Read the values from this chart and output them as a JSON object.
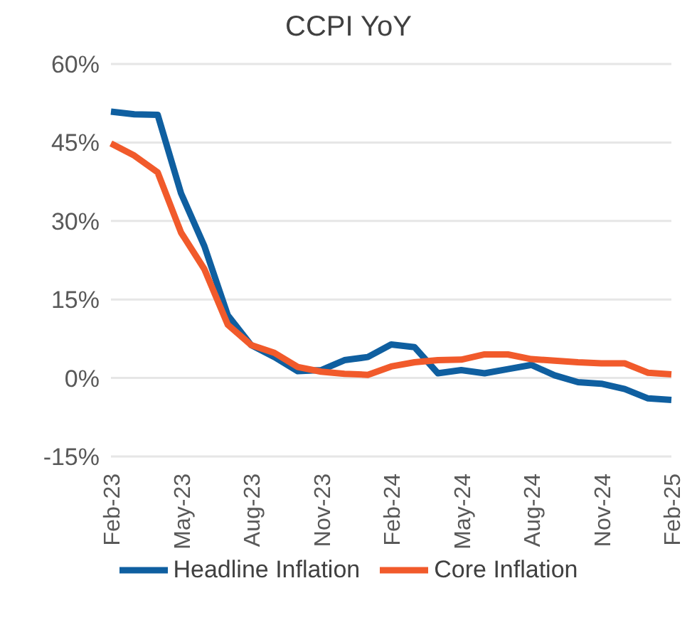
{
  "chart_data": {
    "type": "line",
    "title": "CCPI YoY",
    "categories": [
      "Feb-23",
      null,
      null,
      "May-23",
      null,
      null,
      "Aug-23",
      null,
      null,
      "Nov-23",
      null,
      null,
      "Feb-24",
      null,
      null,
      "May-24",
      null,
      null,
      "Aug-24",
      null,
      null,
      "Nov-24",
      null,
      null,
      "Feb-25"
    ],
    "series": [
      {
        "name": "Headline Inflation",
        "color": "#0f5fa0",
        "values": [
          50.9,
          50.4,
          50.3,
          35.3,
          25.2,
          12.0,
          6.3,
          4.0,
          1.3,
          1.5,
          3.4,
          4.0,
          6.4,
          5.9,
          0.9,
          1.5,
          0.9,
          1.7,
          2.5,
          0.5,
          -0.8,
          -1.1,
          -2.1,
          -3.9,
          -4.2
        ]
      },
      {
        "name": "Core Inflation",
        "color": "#f15a2b",
        "values": [
          44.8,
          42.5,
          39.3,
          27.8,
          20.8,
          10.2,
          6.3,
          4.8,
          2.1,
          1.2,
          0.8,
          0.6,
          2.2,
          3.0,
          3.4,
          3.5,
          4.5,
          4.5,
          3.6,
          3.3,
          3.0,
          2.8,
          2.8,
          1.0,
          0.7
        ]
      }
    ],
    "ylim": [
      -15,
      60
    ],
    "yticks": [
      {
        "value": -15,
        "label": "-15%"
      },
      {
        "value": 0,
        "label": "0%"
      },
      {
        "value": 15,
        "label": "15%"
      },
      {
        "value": 30,
        "label": "30%"
      },
      {
        "value": 45,
        "label": "45%"
      },
      {
        "value": 60,
        "label": "60%"
      }
    ],
    "grid": "y",
    "legend": "bottom",
    "marker": "none",
    "line_style": "solid"
  }
}
